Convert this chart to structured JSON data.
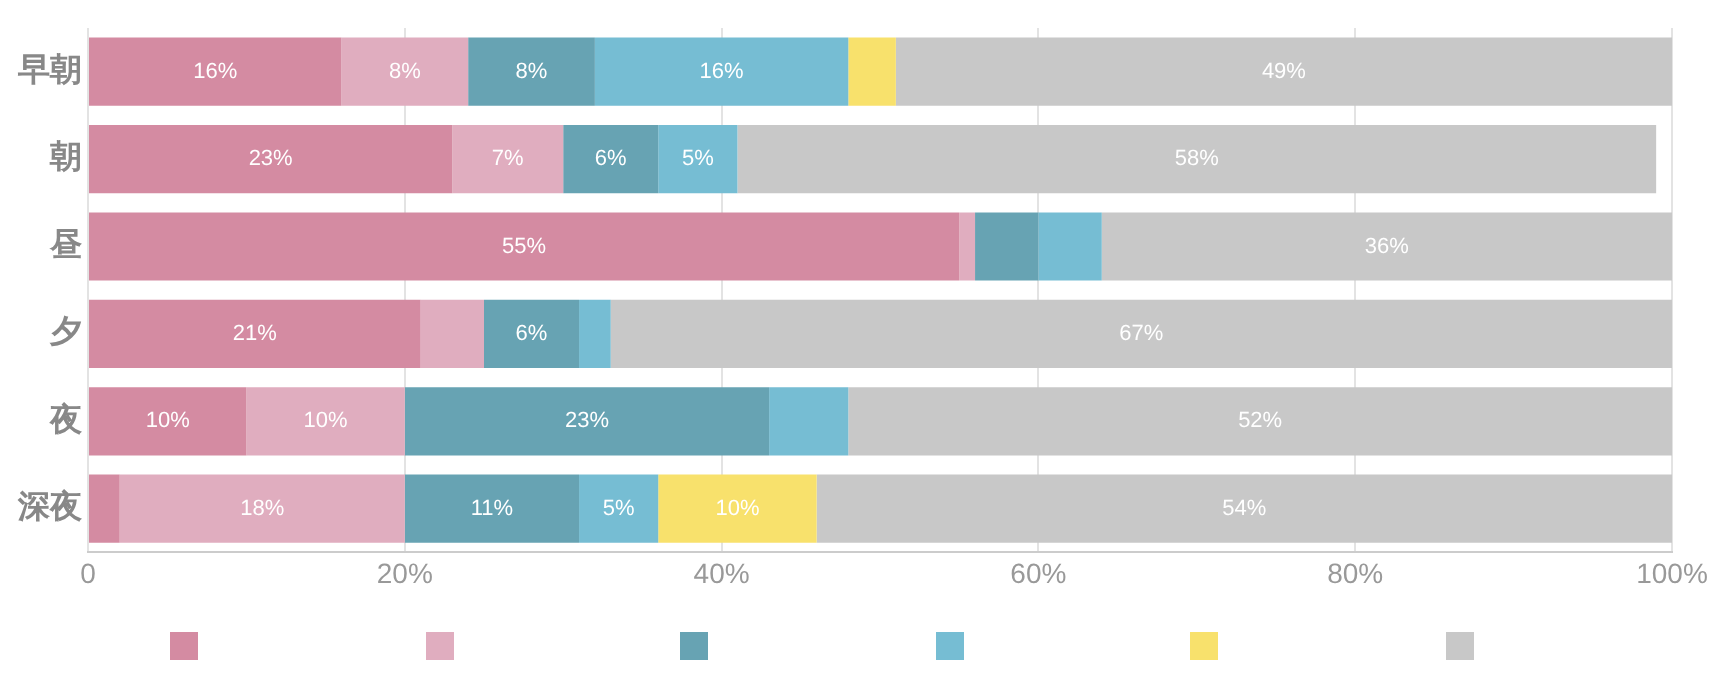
{
  "chart_data": {
    "type": "bar",
    "orientation": "horizontal",
    "stacked": true,
    "categories": [
      "早朝",
      "朝",
      "昼",
      "夕",
      "夜",
      "深夜"
    ],
    "series": [
      {
        "color": "#d48ba2",
        "values": [
          16,
          23,
          55,
          21,
          10,
          2
        ],
        "value_labels": [
          "16%",
          "23%",
          "55%",
          "21%",
          "10%",
          null
        ]
      },
      {
        "color": "#e0adbf",
        "values": [
          8,
          7,
          1,
          4,
          10,
          18
        ],
        "value_labels": [
          "8%",
          "7%",
          null,
          null,
          "10%",
          "18%"
        ]
      },
      {
        "color": "#67a3b3",
        "values": [
          8,
          6,
          4,
          6,
          23,
          11
        ],
        "value_labels": [
          "8%",
          "6%",
          null,
          "6%",
          "23%",
          "11%"
        ]
      },
      {
        "color": "#76bdd3",
        "values": [
          16,
          5,
          4,
          2,
          5,
          5
        ],
        "value_labels": [
          "16%",
          "5%",
          null,
          null,
          null,
          "5%"
        ]
      },
      {
        "color": "#f8e16c",
        "values": [
          3,
          0,
          0,
          0,
          0,
          10
        ],
        "value_labels": [
          null,
          null,
          null,
          null,
          null,
          "10%"
        ]
      },
      {
        "color": "#c8c8c8",
        "values": [
          49,
          58,
          36,
          67,
          52,
          54
        ],
        "value_labels": [
          "49%",
          "58%",
          "36%",
          "67%",
          "52%",
          "54%"
        ]
      }
    ],
    "xlim": [
      0,
      100
    ],
    "xticks": [
      0,
      {
        "value": 20,
        "label": "20%"
      },
      {
        "value": 40,
        "label": "40%"
      },
      {
        "value": 60,
        "label": "60%"
      },
      {
        "value": 80,
        "label": "80%"
      },
      {
        "value": 100,
        "label": "100%"
      }
    ],
    "grid": "x"
  }
}
